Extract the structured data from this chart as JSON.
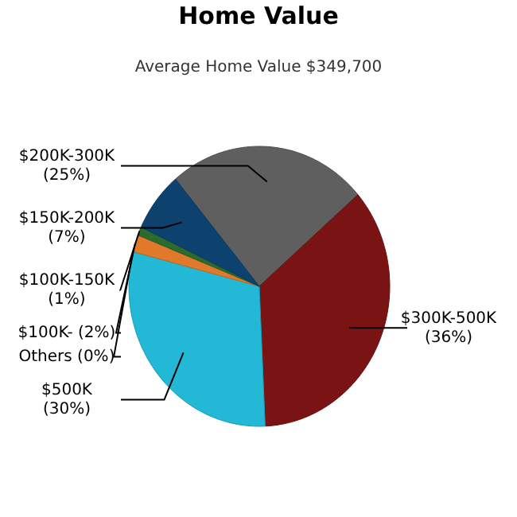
{
  "chart_data": {
    "type": "pie",
    "title": "Home Value",
    "subtitle": "Average Home Value  $349,700",
    "categories": [
      "$200K-300K",
      "$300K-500K",
      "$500K",
      "Others",
      "$100K-",
      "$100K-150K",
      "$150K-200K"
    ],
    "values": [
      25,
      36,
      30,
      0,
      2,
      1,
      7
    ],
    "value_labels": [
      "(25%)",
      "(36%)",
      "(30%)",
      "(0%)",
      "(2%)",
      "(1%)",
      "(7%)"
    ],
    "colors": [
      "#5f5f5f",
      "#7a1414",
      "#22b8d6",
      "#6a9a3a",
      "#e07a2a",
      "#2d6a2d",
      "#0e426e"
    ]
  }
}
